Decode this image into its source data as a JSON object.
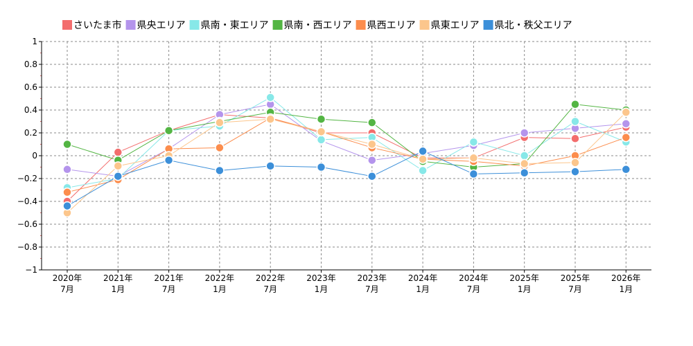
{
  "chart_data": {
    "type": "line",
    "title": "",
    "xlabel": "",
    "ylabel": "",
    "ylim": [
      -1,
      1
    ],
    "y_ticks": [
      "1",
      "0.8",
      "0.6",
      "0.4",
      "0.2",
      "0",
      "−0.2",
      "−0.4",
      "−0.6",
      "−0.8",
      "−1"
    ],
    "y_tick_values": [
      1,
      0.8,
      0.6,
      0.4,
      0.2,
      0,
      -0.2,
      -0.4,
      -0.6,
      -0.8,
      -1
    ],
    "categories": [
      {
        "year": "2020年",
        "month": "7月"
      },
      {
        "year": "2021年",
        "month": "1月"
      },
      {
        "year": "2021年",
        "month": "7月"
      },
      {
        "year": "2022年",
        "month": "1月"
      },
      {
        "year": "2022年",
        "month": "7月"
      },
      {
        "year": "2023年",
        "month": "1月"
      },
      {
        "year": "2023年",
        "month": "7月"
      },
      {
        "year": "2024年",
        "month": "1月"
      },
      {
        "year": "2024年",
        "month": "7月"
      },
      {
        "year": "2025年",
        "month": "1月"
      },
      {
        "year": "2025年",
        "month": "7月"
      },
      {
        "year": "2026年",
        "month": "1月"
      }
    ],
    "grid": true,
    "legend_position": "top",
    "series": [
      {
        "name": "さいたま市",
        "color": "#f36d6d",
        "values": [
          -0.4,
          0.03,
          0.22,
          0.36,
          0.33,
          0.2,
          0.2,
          -0.02,
          -0.02,
          0.16,
          0.15,
          0.25
        ]
      },
      {
        "name": "県央エリア",
        "color": "#b494ec",
        "values": [
          -0.12,
          -0.18,
          0.06,
          0.36,
          0.45,
          0.13,
          -0.04,
          0.02,
          0.09,
          0.2,
          0.24,
          0.28
        ]
      },
      {
        "name": "県南・東エリア",
        "color": "#87e8e8",
        "values": [
          -0.28,
          -0.2,
          0.22,
          0.26,
          0.51,
          0.14,
          0.16,
          -0.13,
          0.12,
          0.0,
          0.3,
          0.12
        ]
      },
      {
        "name": "県南・西エリア",
        "color": "#53b543",
        "values": [
          0.1,
          -0.04,
          0.22,
          0.3,
          0.38,
          0.32,
          0.29,
          -0.05,
          -0.1,
          -0.07,
          0.45,
          0.4
        ]
      },
      {
        "name": "県西エリア",
        "color": "#fc8d4d",
        "values": [
          -0.32,
          -0.21,
          0.06,
          0.07,
          0.33,
          0.21,
          0.07,
          -0.03,
          -0.05,
          -0.09,
          0.0,
          0.16
        ]
      },
      {
        "name": "県東エリア",
        "color": "#fcc68c",
        "values": [
          -0.5,
          -0.09,
          0.0,
          0.29,
          0.32,
          0.21,
          0.1,
          -0.03,
          -0.02,
          -0.07,
          -0.06,
          0.38
        ]
      },
      {
        "name": "県北・秩父エリア",
        "color": "#3c8fd9",
        "values": [
          -0.44,
          -0.18,
          -0.04,
          -0.13,
          -0.09,
          -0.1,
          -0.18,
          0.04,
          -0.16,
          -0.15,
          -0.14,
          -0.12
        ]
      }
    ]
  }
}
